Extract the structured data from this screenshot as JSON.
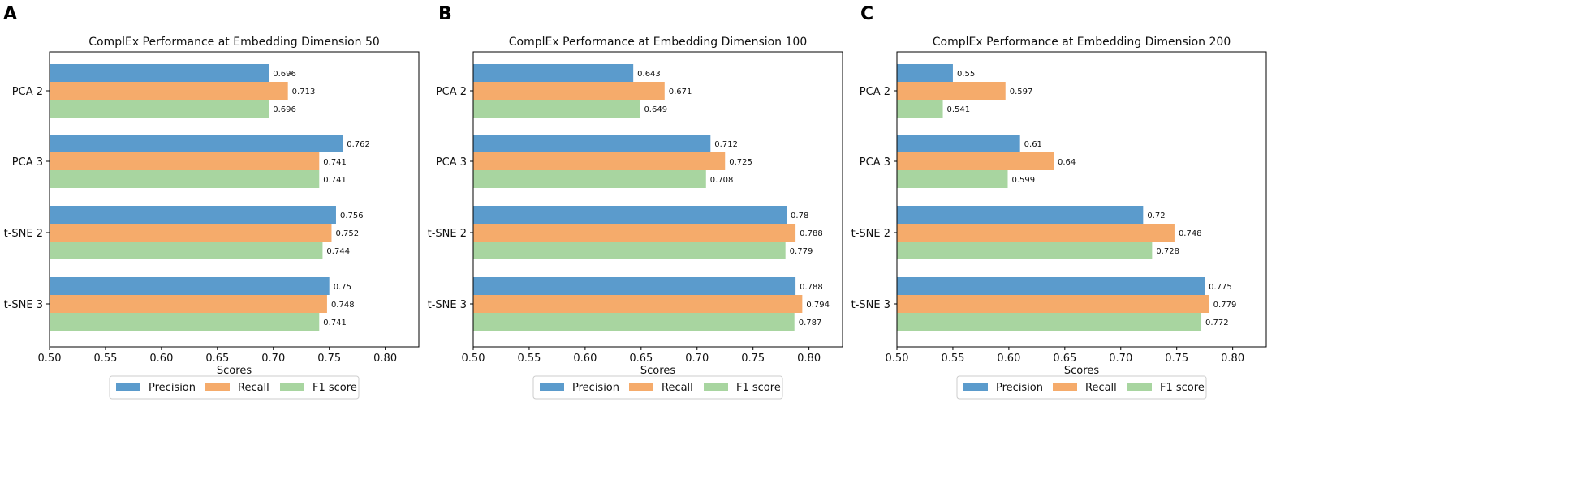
{
  "figure": {
    "panel_letters": [
      "A",
      "B",
      "C"
    ]
  },
  "legend_labels": [
    "Precision",
    "Recall",
    "F1 score"
  ],
  "colors": {
    "precision": "#5b9bcc",
    "recall": "#f5ab6b",
    "f1": "#a8d5a0",
    "axis": "#000000",
    "text": "#111111"
  },
  "chart_data": [
    {
      "type": "bar",
      "orientation": "horizontal",
      "title": "ComplEx Performance at Embedding Dimension 50",
      "xlabel": "Scores",
      "ylabel": "",
      "xlim": [
        0.5,
        0.83
      ],
      "xticks": [
        "0.50",
        "0.55",
        "0.60",
        "0.65",
        "0.70",
        "0.75",
        "0.80"
      ],
      "categories": [
        "PCA 2",
        "PCA 3",
        "t-SNE 2",
        "t-SNE 3"
      ],
      "series": [
        {
          "name": "Precision",
          "values": [
            0.696,
            0.762,
            0.756,
            0.75
          ],
          "labels": [
            "0.696",
            "0.762",
            "0.756",
            "0.75"
          ]
        },
        {
          "name": "Recall",
          "values": [
            0.713,
            0.741,
            0.752,
            0.748
          ],
          "labels": [
            "0.713",
            "0.741",
            "0.752",
            "0.748"
          ]
        },
        {
          "name": "F1 score",
          "values": [
            0.696,
            0.741,
            0.744,
            0.741
          ],
          "labels": [
            "0.696",
            "0.741",
            "0.744",
            "0.741"
          ]
        }
      ],
      "legend": "bottom-center"
    },
    {
      "type": "bar",
      "orientation": "horizontal",
      "title": "ComplEx Performance at Embedding Dimension 100",
      "xlabel": "Scores",
      "ylabel": "",
      "xlim": [
        0.5,
        0.83
      ],
      "xticks": [
        "0.50",
        "0.55",
        "0.60",
        "0.65",
        "0.70",
        "0.75",
        "0.80"
      ],
      "categories": [
        "PCA 2",
        "PCA 3",
        "t-SNE 2",
        "t-SNE 3"
      ],
      "series": [
        {
          "name": "Precision",
          "values": [
            0.643,
            0.712,
            0.78,
            0.788
          ],
          "labels": [
            "0.643",
            "0.712",
            "0.78",
            "0.788"
          ]
        },
        {
          "name": "Recall",
          "values": [
            0.671,
            0.725,
            0.788,
            0.794
          ],
          "labels": [
            "0.671",
            "0.725",
            "0.788",
            "0.794"
          ]
        },
        {
          "name": "F1 score",
          "values": [
            0.649,
            0.708,
            0.779,
            0.787
          ],
          "labels": [
            "0.649",
            "0.708",
            "0.779",
            "0.787"
          ]
        }
      ],
      "legend": "bottom-center"
    },
    {
      "type": "bar",
      "orientation": "horizontal",
      "title": "ComplEx Performance at Embedding Dimension 200",
      "xlabel": "Scores",
      "ylabel": "",
      "xlim": [
        0.5,
        0.83
      ],
      "xticks": [
        "0.50",
        "0.55",
        "0.60",
        "0.65",
        "0.70",
        "0.75",
        "0.80"
      ],
      "categories": [
        "PCA 2",
        "PCA 3",
        "t-SNE 2",
        "t-SNE 3"
      ],
      "series": [
        {
          "name": "Precision",
          "values": [
            0.55,
            0.61,
            0.72,
            0.775
          ],
          "labels": [
            "0.55",
            "0.61",
            "0.72",
            "0.775"
          ]
        },
        {
          "name": "Recall",
          "values": [
            0.597,
            0.64,
            0.748,
            0.779
          ],
          "labels": [
            "0.597",
            "0.64",
            "0.748",
            "0.779"
          ]
        },
        {
          "name": "F1 score",
          "values": [
            0.541,
            0.599,
            0.728,
            0.772
          ],
          "labels": [
            "0.541",
            "0.599",
            "0.728",
            "0.772"
          ]
        }
      ],
      "legend": "bottom-center"
    }
  ]
}
